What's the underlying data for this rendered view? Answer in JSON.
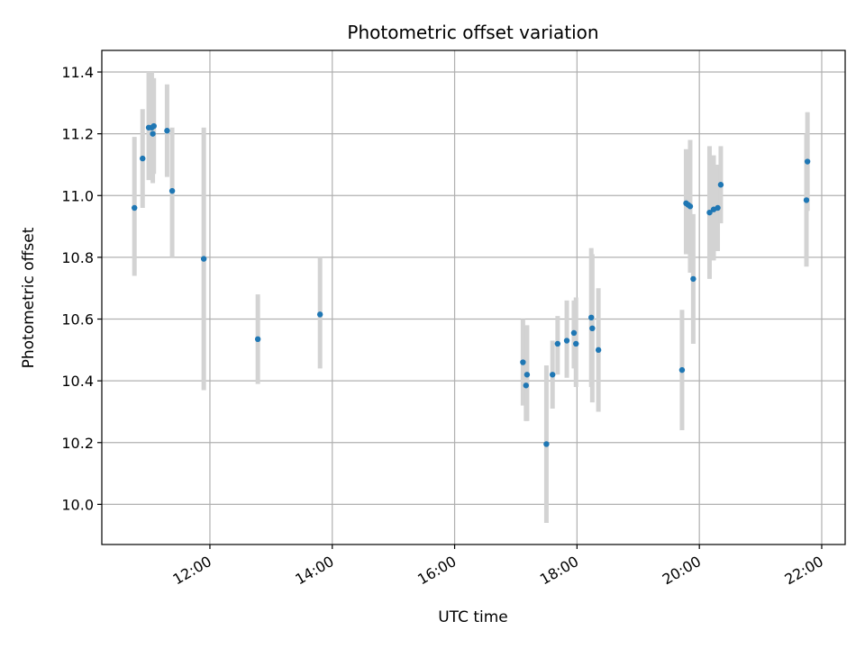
{
  "chart_data": {
    "type": "scatter",
    "title": "Photometric offset variation",
    "xlabel": "UTC time",
    "ylabel": "Photometric offset",
    "xlim": [
      "10:14",
      "22:23"
    ],
    "ylim": [
      9.87,
      11.47
    ],
    "x_ticks": [
      "12:00",
      "14:00",
      "16:00",
      "18:00",
      "20:00",
      "22:00"
    ],
    "y_ticks": [
      "10.0",
      "10.2",
      "10.4",
      "10.6",
      "10.8",
      "11.0",
      "11.2",
      "11.4"
    ],
    "grid": true,
    "colors": {
      "point": "#1f77b4",
      "error_bar": "#d3d3d3",
      "grid": "#b0b0b0"
    },
    "series": [
      {
        "points": [
          {
            "x": "10:46",
            "y": 10.96,
            "low": 10.74,
            "high": 11.19
          },
          {
            "x": "10:54",
            "y": 11.12,
            "low": 10.96,
            "high": 11.28
          },
          {
            "x": "11:00",
            "y": 11.22,
            "low": 11.05,
            "high": 11.4
          },
          {
            "x": "11:03",
            "y": 11.22,
            "low": 11.05,
            "high": 11.4
          },
          {
            "x": "11:04",
            "y": 11.2,
            "low": 11.04,
            "high": 11.38
          },
          {
            "x": "11:05",
            "y": 11.225,
            "low": 11.07,
            "high": 11.38
          },
          {
            "x": "11:18",
            "y": 11.21,
            "low": 11.06,
            "high": 11.36
          },
          {
            "x": "11:23",
            "y": 11.015,
            "low": 10.8,
            "high": 11.22
          },
          {
            "x": "11:54",
            "y": 10.795,
            "low": 10.37,
            "high": 11.22
          },
          {
            "x": "12:47",
            "y": 10.535,
            "low": 10.39,
            "high": 10.68
          },
          {
            "x": "13:48",
            "y": 10.615,
            "low": 10.44,
            "high": 10.8
          },
          {
            "x": "17:07",
            "y": 10.46,
            "low": 10.32,
            "high": 10.6
          },
          {
            "x": "17:10",
            "y": 10.385,
            "low": 10.27,
            "high": 10.5
          },
          {
            "x": "17:11",
            "y": 10.42,
            "low": 10.27,
            "high": 10.58
          },
          {
            "x": "17:30",
            "y": 10.195,
            "low": 9.94,
            "high": 10.45
          },
          {
            "x": "17:36",
            "y": 10.42,
            "low": 10.31,
            "high": 10.53
          },
          {
            "x": "17:41",
            "y": 10.52,
            "low": 10.42,
            "high": 10.61
          },
          {
            "x": "17:50",
            "y": 10.53,
            "low": 10.41,
            "high": 10.66
          },
          {
            "x": "17:57",
            "y": 10.555,
            "low": 10.44,
            "high": 10.66
          },
          {
            "x": "17:59",
            "y": 10.52,
            "low": 10.38,
            "high": 10.67
          },
          {
            "x": "18:14",
            "y": 10.605,
            "low": 10.38,
            "high": 10.83
          },
          {
            "x": "18:15",
            "y": 10.57,
            "low": 10.33,
            "high": 10.81
          },
          {
            "x": "18:21",
            "y": 10.5,
            "low": 10.3,
            "high": 10.7
          },
          {
            "x": "19:43",
            "y": 10.435,
            "low": 10.24,
            "high": 10.63
          },
          {
            "x": "19:47",
            "y": 10.975,
            "low": 10.81,
            "high": 11.15
          },
          {
            "x": "19:49",
            "y": 10.97,
            "low": 10.81,
            "high": 11.13
          },
          {
            "x": "19:51",
            "y": 10.965,
            "low": 10.75,
            "high": 11.18
          },
          {
            "x": "19:54",
            "y": 10.73,
            "low": 10.52,
            "high": 10.94
          },
          {
            "x": "20:10",
            "y": 10.945,
            "low": 10.73,
            "high": 11.16
          },
          {
            "x": "20:14",
            "y": 10.955,
            "low": 10.79,
            "high": 11.13
          },
          {
            "x": "20:18",
            "y": 10.96,
            "low": 10.82,
            "high": 11.1
          },
          {
            "x": "20:21",
            "y": 11.035,
            "low": 10.91,
            "high": 11.16
          },
          {
            "x": "21:45",
            "y": 10.985,
            "low": 10.77,
            "high": 11.2
          },
          {
            "x": "21:46",
            "y": 11.11,
            "low": 10.95,
            "high": 11.27
          }
        ]
      }
    ]
  }
}
